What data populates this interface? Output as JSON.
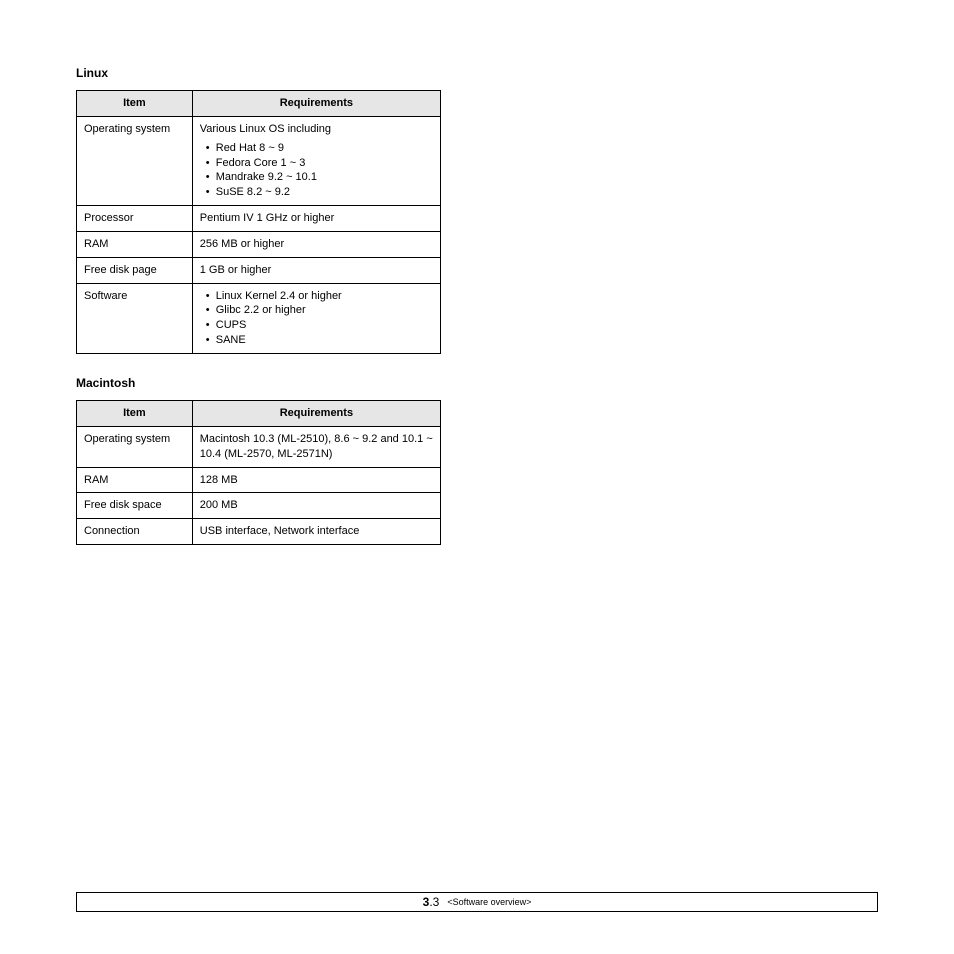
{
  "colors": {
    "header_bg": "#e6e6e6",
    "border": "#000000",
    "text": "#000000",
    "page_bg": "#ffffff"
  },
  "sections": {
    "linux": {
      "heading": "Linux",
      "columns": {
        "item": "Item",
        "req": "Requirements"
      },
      "rows": {
        "os": {
          "item": "Operating system",
          "intro": "Various Linux OS including",
          "bullets": [
            "Red Hat 8 ~ 9",
            "Fedora Core 1 ~ 3",
            "Mandrake 9.2 ~ 10.1",
            "SuSE 8.2 ~ 9.2"
          ]
        },
        "processor": {
          "item": "Processor",
          "req": "Pentium IV 1 GHz or higher"
        },
        "ram": {
          "item": "RAM",
          "req": "256 MB or higher"
        },
        "disk": {
          "item": "Free disk page",
          "req": "1 GB or higher"
        },
        "software": {
          "item": "Software",
          "bullets": [
            "Linux Kernel 2.4 or higher",
            "Glibc 2.2 or higher",
            "CUPS",
            "SANE"
          ]
        }
      }
    },
    "mac": {
      "heading": "Macintosh",
      "columns": {
        "item": "Item",
        "req": "Requirements"
      },
      "rows": {
        "os": {
          "item": "Operating system",
          "req": "Macintosh 10.3 (ML-2510), 8.6 ~ 9.2 and 10.1 ~ 10.4 (ML-2570, ML-2571N)"
        },
        "ram": {
          "item": "RAM",
          "req": "128 MB"
        },
        "disk": {
          "item": "Free disk space",
          "req": "200 MB"
        },
        "conn": {
          "item": "Connection",
          "req": "USB interface, Network interface"
        }
      }
    }
  },
  "footer": {
    "page_major": "3",
    "page_minor": ".3",
    "crumb": "<Software overview>"
  }
}
